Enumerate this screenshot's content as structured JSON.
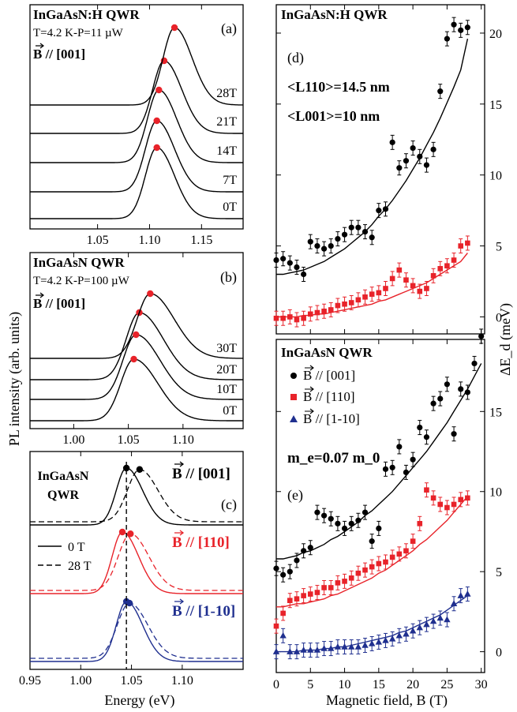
{
  "figure": {
    "shared_ylabel_left": "PL intensity (arb. units)",
    "shared_ylabel_right": "ΔE_d (meV)",
    "left_xlabel": "Energy (eV)",
    "right_xlabel": "Magnetic field,  B (T)"
  },
  "chart_data": [
    {
      "panel": "a",
      "type": "line",
      "label": "(a)",
      "title_lines": [
        "InGaAsN:H QWR",
        "T=4.2 K-P=11 µW",
        "B // [001]"
      ],
      "x_ticks": [
        1.05,
        1.1,
        1.15
      ],
      "xlim": [
        0.985,
        1.19
      ],
      "series": [
        {
          "name": "0T",
          "peak": 1.107
        },
        {
          "name": "7T",
          "peak": 1.107
        },
        {
          "name": "14T",
          "peak": 1.109
        },
        {
          "name": "21T",
          "peak": 1.114
        },
        {
          "name": "28T",
          "peak": 1.124
        }
      ]
    },
    {
      "panel": "b",
      "type": "line",
      "label": "(b)",
      "title_lines": [
        "InGaAsN QWR",
        "T=4.2 K-P=100 µW",
        "B // [001]"
      ],
      "x_ticks": [
        1.0,
        1.05,
        1.1
      ],
      "xlim": [
        0.96,
        1.155
      ],
      "series": [
        {
          "name": "0T",
          "peak": 1.055
        },
        {
          "name": "10T",
          "peak": 1.057
        },
        {
          "name": "20T",
          "peak": 1.06
        },
        {
          "name": "30T",
          "peak": 1.07
        }
      ]
    },
    {
      "panel": "c",
      "type": "line",
      "label": "(c)",
      "title_lines": [
        "InGaAsN",
        "QWR"
      ],
      "x_ticks": [
        0.95,
        1.0,
        1.05,
        1.1
      ],
      "xlim": [
        0.95,
        1.16
      ],
      "legend": [
        "0 T",
        "28 T"
      ],
      "groups": [
        {
          "name": "B // [001]",
          "color": "#000000",
          "peak0": 1.045,
          "peak28": 1.058
        },
        {
          "name": "B // [110]",
          "color": "#e8232a",
          "peak0": 1.041,
          "peak28": 1.049
        },
        {
          "name": "B // [1-10]",
          "color": "#1f2f8f",
          "peak0": 1.045,
          "peak28": 1.048
        }
      ]
    },
    {
      "panel": "d",
      "type": "scatter",
      "label": "(d)",
      "title_lines": [
        "InGaAsN:H QWR",
        "<L110>=14.5 nm",
        "<L001>=10 nm"
      ],
      "x_ticks": [
        0,
        5,
        10,
        15,
        20,
        25,
        30
      ],
      "y_ticks": [
        0,
        5,
        10,
        15,
        20
      ],
      "xlim": [
        0,
        30.5
      ],
      "ylim": [
        -1.2,
        22
      ],
      "series": [
        {
          "name": "B // [001]",
          "color": "#000000",
          "marker": "circle",
          "x": [
            0,
            1,
            2,
            3,
            4,
            5,
            6,
            7,
            8,
            9,
            10,
            11,
            12,
            13,
            14,
            15,
            16,
            17,
            18,
            19,
            20,
            21,
            22,
            23,
            24,
            25,
            26,
            27,
            28
          ],
          "y": [
            4.0,
            4.1,
            3.8,
            3.5,
            3.0,
            5.3,
            5.0,
            4.8,
            5.0,
            5.5,
            5.8,
            6.3,
            6.3,
            6.0,
            5.6,
            7.5,
            7.6,
            12.3,
            10.5,
            11.0,
            11.9,
            11.3,
            10.7,
            11.8,
            15.9,
            19.6,
            20.6,
            20.2,
            20.4
          ],
          "fit": [
            3.0,
            3.0,
            3.1,
            3.2,
            3.3,
            3.5,
            3.7,
            3.9,
            4.2,
            4.5,
            4.8,
            5.2,
            5.6,
            6.0,
            6.5,
            7.1,
            7.6,
            8.2,
            8.9,
            9.6,
            10.4,
            11.2,
            12.1,
            13.0,
            14.0,
            15.1,
            16.2,
            17.4,
            19.6
          ]
        },
        {
          "name": "B // [110]",
          "color": "#e8232a",
          "marker": "square",
          "x": [
            0,
            1,
            2,
            3,
            4,
            5,
            6,
            7,
            8,
            9,
            10,
            11,
            12,
            13,
            14,
            15,
            16,
            17,
            18,
            19,
            20,
            21,
            22,
            23,
            24,
            25,
            26,
            27,
            28
          ],
          "y": [
            -0.1,
            -0.1,
            0.0,
            -0.2,
            -0.1,
            0.2,
            0.3,
            0.4,
            0.5,
            0.8,
            0.9,
            1.0,
            1.2,
            1.4,
            1.6,
            1.7,
            2.0,
            2.7,
            3.3,
            2.6,
            2.2,
            1.8,
            2.0,
            2.9,
            3.4,
            3.6,
            4.0,
            5.0,
            5.2
          ],
          "fit": [
            0.0,
            0.0,
            0.0,
            0.0,
            0.1,
            0.1,
            0.2,
            0.2,
            0.3,
            0.4,
            0.5,
            0.6,
            0.7,
            0.8,
            0.9,
            1.1,
            1.2,
            1.4,
            1.6,
            1.8,
            2.0,
            2.2,
            2.4,
            2.7,
            3.0,
            3.3,
            3.6,
            3.9,
            4.5
          ]
        }
      ]
    },
    {
      "panel": "e",
      "type": "scatter",
      "label": "(e)",
      "title_lines": [
        "InGaAsN QWR"
      ],
      "annotation": "m_e=0.07 m_0",
      "legend": [
        "B // [001]",
        "B // [110]",
        "B // [1-10]"
      ],
      "x_ticks": [
        0,
        5,
        10,
        15,
        20,
        25,
        30
      ],
      "y_ticks": [
        0,
        5,
        10,
        15
      ],
      "xlim": [
        0,
        30.5
      ],
      "ylim": [
        -1.3,
        19.5
      ],
      "series": [
        {
          "name": "B // [001]",
          "color": "#000000",
          "marker": "circle",
          "x": [
            0,
            1,
            2,
            3,
            4,
            5,
            6,
            7,
            8,
            9,
            10,
            11,
            12,
            13,
            14,
            15,
            16,
            17,
            18,
            19,
            20,
            21,
            22,
            23,
            24,
            25,
            26,
            27,
            28,
            29,
            30
          ],
          "y": [
            5.2,
            4.8,
            5.0,
            5.7,
            6.3,
            6.5,
            8.7,
            8.5,
            8.3,
            8.0,
            7.7,
            8.0,
            8.2,
            8.7,
            6.9,
            7.7,
            11.4,
            11.5,
            12.8,
            11.2,
            12.0,
            14.0,
            13.4,
            15.5,
            15.8,
            16.7,
            13.6,
            16.4,
            16.2,
            18.0,
            19.7
          ],
          "fit": [
            5.8,
            5.8,
            5.9,
            6.0,
            6.2,
            6.3,
            6.5,
            6.7,
            7.0,
            7.2,
            7.5,
            7.8,
            8.1,
            8.5,
            8.8,
            9.2,
            9.6,
            10.0,
            10.5,
            11.0,
            11.5,
            12.0,
            12.5,
            13.1,
            13.7,
            14.3,
            15.0,
            15.7,
            16.4,
            17.2,
            18.0
          ]
        },
        {
          "name": "B // [110]",
          "color": "#e8232a",
          "marker": "square",
          "x": [
            0,
            1,
            2,
            3,
            4,
            5,
            6,
            7,
            8,
            9,
            10,
            11,
            12,
            13,
            14,
            15,
            16,
            17,
            18,
            19,
            20,
            21,
            22,
            23,
            24,
            25,
            26,
            27,
            28
          ],
          "y": [
            1.6,
            2.4,
            3.2,
            3.3,
            3.5,
            3.6,
            3.7,
            4.0,
            4.0,
            4.3,
            4.4,
            4.6,
            4.9,
            5.1,
            5.3,
            5.5,
            5.6,
            5.9,
            6.1,
            6.3,
            6.9,
            8.0,
            10.1,
            9.6,
            9.2,
            9.0,
            9.2,
            9.5,
            9.6
          ],
          "fit": [
            2.8,
            2.8,
            2.9,
            3.0,
            3.0,
            3.1,
            3.2,
            3.3,
            3.5,
            3.6,
            3.8,
            4.0,
            4.2,
            4.4,
            4.6,
            4.9,
            5.1,
            5.4,
            5.7,
            6.0,
            6.3,
            6.7,
            7.0,
            7.4,
            7.8,
            8.2,
            8.7,
            9.2,
            9.7
          ]
        },
        {
          "name": "B // [1-10]",
          "color": "#1f2f8f",
          "marker": "triangle",
          "x": [
            0,
            1,
            2,
            3,
            4,
            5,
            6,
            7,
            8,
            9,
            10,
            11,
            12,
            13,
            14,
            15,
            16,
            17,
            18,
            19,
            20,
            21,
            22,
            23,
            24,
            25,
            26,
            27,
            28
          ],
          "y": [
            0.0,
            1.0,
            0.0,
            0.0,
            0.1,
            0.1,
            0.1,
            0.2,
            0.2,
            0.3,
            0.3,
            0.3,
            0.3,
            0.4,
            0.5,
            0.6,
            0.7,
            0.8,
            1.0,
            1.1,
            1.3,
            1.5,
            1.7,
            1.9,
            2.1,
            2.0,
            3.0,
            3.5,
            3.6
          ],
          "fit": [
            0.0,
            0.0,
            0.0,
            0.0,
            0.1,
            0.1,
            0.1,
            0.2,
            0.2,
            0.3,
            0.3,
            0.4,
            0.5,
            0.6,
            0.7,
            0.8,
            0.9,
            1.0,
            1.2,
            1.3,
            1.5,
            1.7,
            1.9,
            2.1,
            2.3,
            2.6,
            2.9,
            3.2,
            3.5
          ]
        }
      ]
    }
  ]
}
